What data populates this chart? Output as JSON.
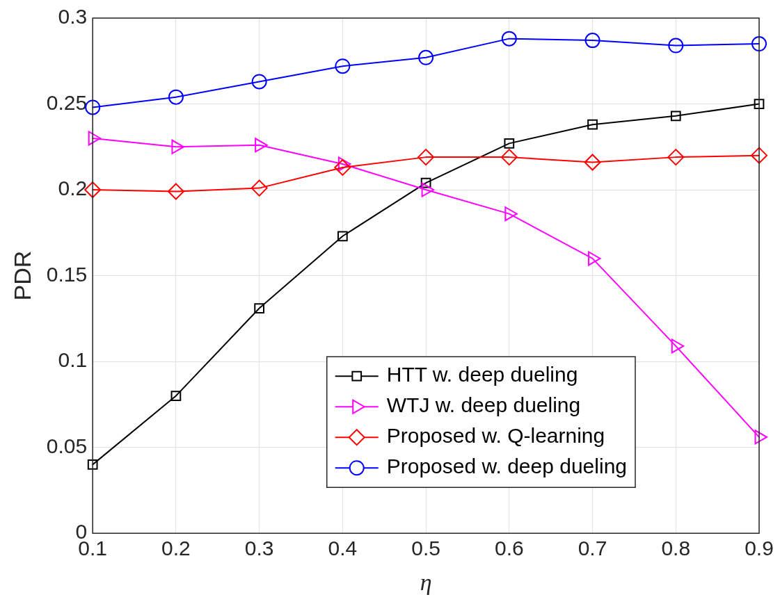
{
  "chart_data": {
    "type": "line",
    "xlabel": "η",
    "ylabel": "PDR",
    "x": [
      0.1,
      0.2,
      0.3,
      0.4,
      0.5,
      0.6,
      0.7,
      0.8,
      0.9
    ],
    "series": [
      {
        "name": "HTT w. deep dueling",
        "color": "#000000",
        "marker": "square",
        "values": [
          0.04,
          0.08,
          0.131,
          0.173,
          0.204,
          0.227,
          0.238,
          0.243,
          0.25
        ]
      },
      {
        "name": "WTJ w. deep dueling",
        "color": "#ff00ff",
        "marker": "triangle",
        "values": [
          0.23,
          0.225,
          0.226,
          0.215,
          0.2,
          0.186,
          0.16,
          0.109,
          0.056
        ]
      },
      {
        "name": "Proposed w. Q-learning",
        "color": "#ff0000",
        "marker": "diamond",
        "values": [
          0.2,
          0.199,
          0.201,
          0.213,
          0.219,
          0.219,
          0.216,
          0.219,
          0.22
        ]
      },
      {
        "name": "Proposed w. deep dueling",
        "color": "#0000ff",
        "marker": "circle",
        "values": [
          0.248,
          0.254,
          0.263,
          0.272,
          0.277,
          0.288,
          0.287,
          0.284,
          0.285
        ]
      }
    ],
    "xlim": [
      0.1,
      0.9
    ],
    "xticks": [
      0.1,
      0.2,
      0.3,
      0.4,
      0.5,
      0.6,
      0.7,
      0.8,
      0.9
    ],
    "ylim": [
      0,
      0.3
    ],
    "yticks": [
      0,
      0.05,
      0.1,
      0.15,
      0.2,
      0.25,
      0.3
    ],
    "grid": true,
    "legend": "bottom right",
    "line_style": "solid"
  }
}
